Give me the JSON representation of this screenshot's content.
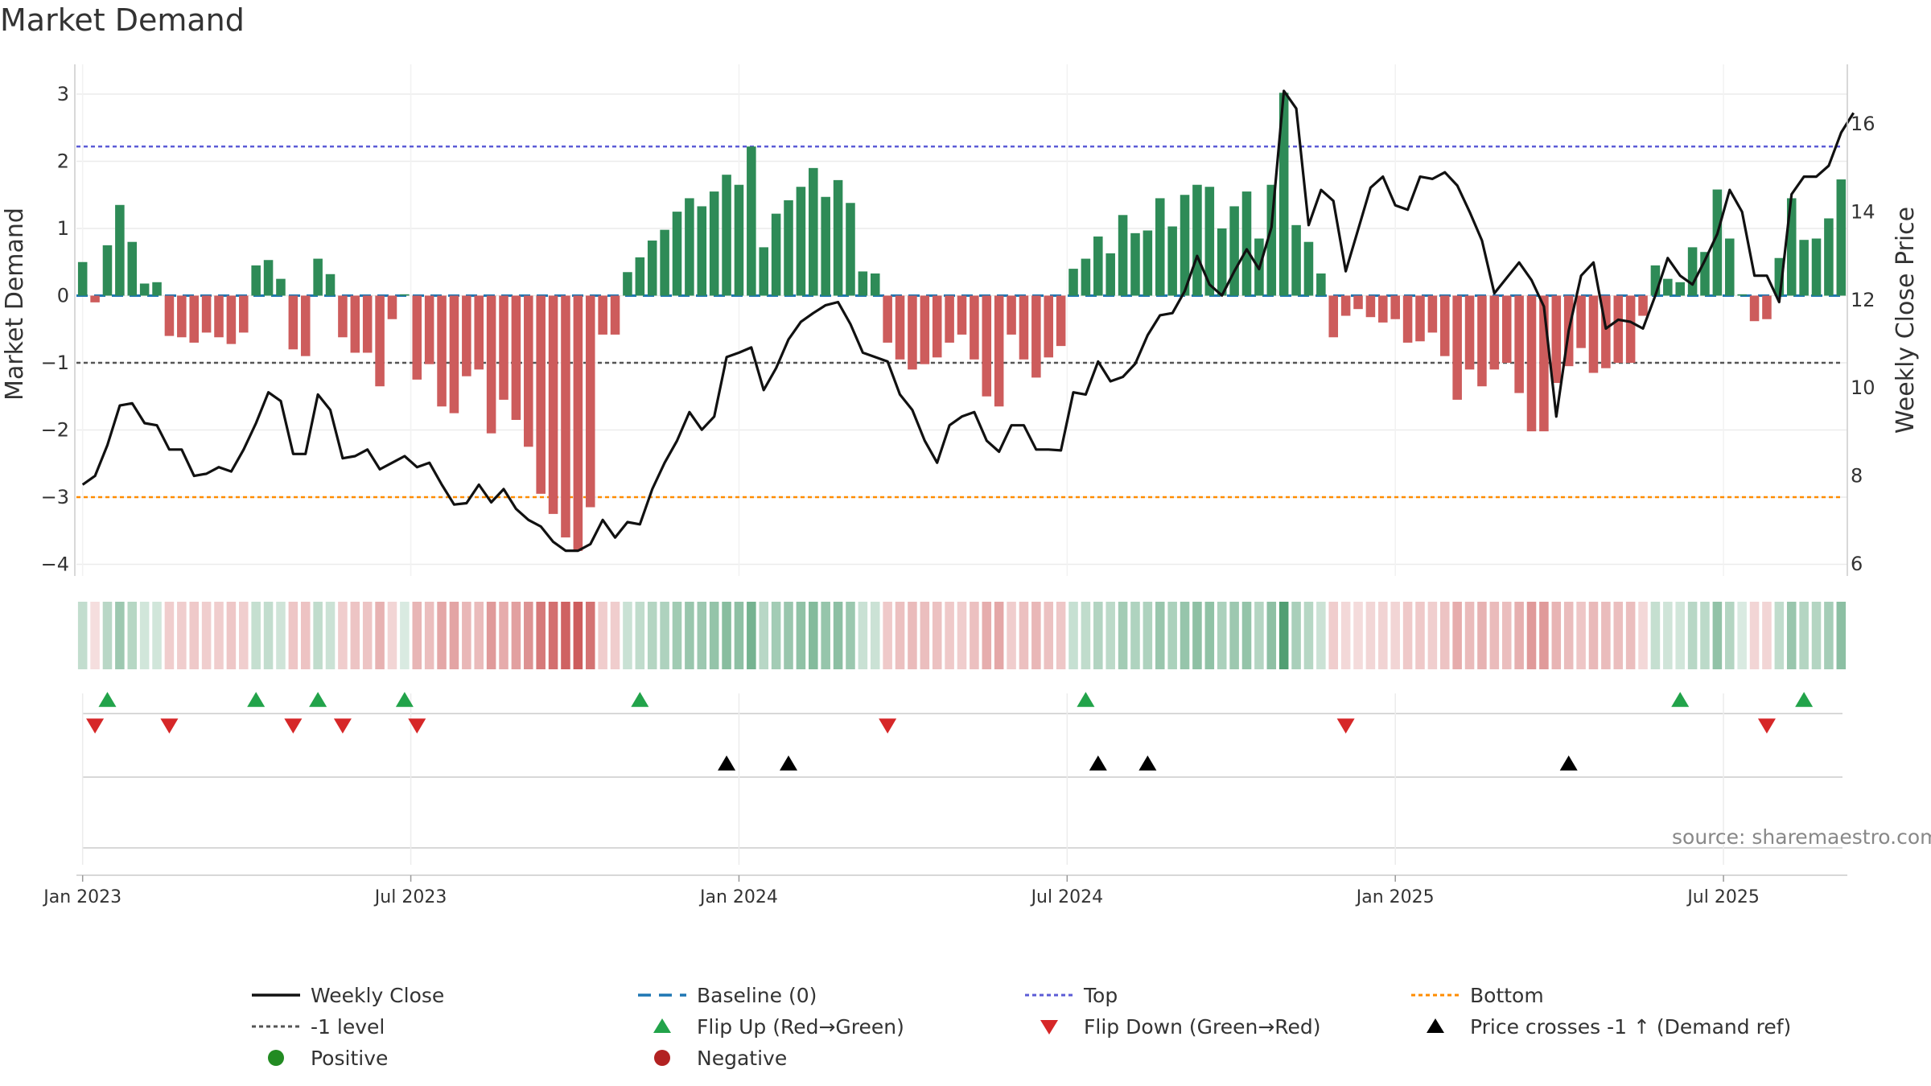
{
  "chart_data": {
    "type": "bar",
    "title": "Market Demand",
    "ylabel": "Market Demand",
    "y2label": "Weekly Close Price",
    "ylim": [
      -4.3,
      3.5
    ],
    "y2lim": [
      5.75,
      17.1
    ],
    "yticks": [
      "−4",
      "−3",
      "−2",
      "−1",
      "0",
      "1",
      "2",
      "3"
    ],
    "ytick_values": [
      -4,
      -3,
      -2,
      -1,
      0,
      1,
      2,
      3
    ],
    "y2ticks": [
      "6",
      "8",
      "10",
      "12",
      "14",
      "16"
    ],
    "y2tick_values": [
      6,
      8,
      10,
      12,
      14,
      16
    ],
    "x_dates": [
      "Jan 2023",
      "Jul 2023",
      "Jan 2024",
      "Jul 2024",
      "Jan 2025",
      "Jul 2025"
    ],
    "x_date_index": [
      1,
      27.5,
      54,
      80.5,
      107,
      133.5
    ],
    "reference_lines": {
      "top": 2.22,
      "bottom": -3.0,
      "minus_one": -1.0,
      "baseline": 0
    },
    "demand": [
      0.5,
      -0.1,
      0.75,
      1.35,
      0.8,
      0.18,
      0.2,
      -0.6,
      -0.62,
      -0.7,
      -0.55,
      -0.62,
      -0.72,
      -0.55,
      0.45,
      0.53,
      0.25,
      -0.8,
      -0.9,
      0.55,
      0.32,
      -0.62,
      -0.85,
      -0.85,
      -1.35,
      -0.35,
      0.02,
      -1.25,
      -1.02,
      -1.65,
      -1.75,
      -1.2,
      -1.1,
      -2.05,
      -1.55,
      -1.85,
      -2.25,
      -2.95,
      -3.25,
      -3.6,
      -3.8,
      -3.15,
      -0.58,
      -0.58,
      0.35,
      0.57,
      0.82,
      0.98,
      1.25,
      1.45,
      1.33,
      1.55,
      1.8,
      1.65,
      2.22,
      0.72,
      1.22,
      1.42,
      1.62,
      1.9,
      1.47,
      1.72,
      1.38,
      0.36,
      0.33,
      -0.7,
      -0.95,
      -1.1,
      -1.02,
      -0.92,
      -0.7,
      -0.58,
      -0.95,
      -1.5,
      -1.65,
      -0.58,
      -0.95,
      -1.22,
      -0.92,
      -0.75,
      0.4,
      0.55,
      0.88,
      0.63,
      1.2,
      0.93,
      0.97,
      1.45,
      1.03,
      1.5,
      1.65,
      1.62,
      1.0,
      1.33,
      1.55,
      0.85,
      1.65,
      3.02,
      1.05,
      0.8,
      0.33,
      -0.62,
      -0.3,
      -0.2,
      -0.32,
      -0.4,
      -0.35,
      -0.7,
      -0.68,
      -0.55,
      -0.9,
      -1.55,
      -1.1,
      -1.35,
      -1.1,
      -1.0,
      -1.45,
      -2.02,
      -2.02,
      -1.3,
      -1.05,
      -0.78,
      -1.15,
      -1.08,
      -1.0,
      -1.0,
      -0.3,
      0.45,
      0.25,
      0.2,
      0.72,
      0.65,
      1.58,
      0.85,
      0.02,
      -0.38,
      -0.35,
      0.56,
      1.45,
      0.83,
      0.85,
      1.15,
      1.73
    ],
    "weekly_close": [
      7.8,
      8.0,
      8.7,
      9.6,
      9.65,
      9.2,
      9.15,
      8.6,
      8.6,
      8.0,
      8.05,
      8.2,
      8.1,
      8.6,
      9.2,
      9.9,
      9.7,
      8.5,
      8.5,
      9.85,
      9.5,
      8.4,
      8.45,
      8.6,
      8.15,
      8.3,
      8.45,
      8.2,
      8.3,
      7.8,
      7.35,
      7.38,
      7.8,
      7.4,
      7.7,
      7.25,
      7.0,
      6.85,
      6.5,
      6.3,
      6.3,
      6.45,
      7.0,
      6.6,
      6.95,
      6.9,
      7.7,
      8.3,
      8.8,
      9.45,
      9.05,
      9.35,
      10.7,
      10.8,
      10.92,
      9.95,
      10.45,
      11.1,
      11.5,
      11.7,
      11.88,
      11.95,
      11.45,
      10.8,
      10.7,
      10.6,
      9.85,
      9.5,
      8.8,
      8.3,
      9.15,
      9.35,
      9.45,
      8.8,
      8.55,
      9.15,
      9.15,
      8.6,
      8.6,
      8.58,
      9.9,
      9.85,
      10.6,
      10.15,
      10.25,
      10.55,
      11.2,
      11.65,
      11.7,
      12.2,
      13.0,
      12.35,
      12.1,
      12.65,
      13.15,
      12.7,
      13.65,
      16.75,
      16.35,
      13.7,
      14.5,
      14.25,
      12.65,
      13.6,
      14.55,
      14.8,
      14.15,
      14.05,
      14.8,
      14.75,
      14.9,
      14.6,
      14.0,
      13.35,
      12.15,
      12.5,
      12.85,
      12.45,
      11.85,
      9.35,
      11.3,
      12.55,
      12.85,
      11.35,
      11.55,
      11.5,
      11.35,
      12.1,
      12.95,
      12.55,
      12.35,
      12.9,
      13.5,
      14.5,
      14.0,
      12.55,
      12.55,
      11.95,
      14.4,
      14.8,
      14.8,
      15.05,
      15.8,
      16.25
    ],
    "flip_up_index": [
      2,
      14,
      19,
      26,
      45,
      81,
      129,
      139
    ],
    "flip_down_index": [
      1,
      7,
      17,
      21,
      27,
      65,
      102,
      136
    ],
    "price_cross_index": [
      52,
      57,
      82,
      86,
      120
    ],
    "colors": {
      "positive_bar": "#2e8b57",
      "negative_bar": "#cd5c5c",
      "weekly_close": "#111111",
      "baseline": "#1f77b4",
      "top": "#5b5bd6",
      "bottom": "#ff8c00",
      "minus_one": "#555555",
      "flip_up": "#22a34a",
      "flip_down": "#d62728",
      "price_cross": "#000000",
      "positive_dot": "#228b22",
      "negative_dot": "#b22222"
    },
    "legend": [
      {
        "label": "Weekly Close",
        "marker": "line"
      },
      {
        "label": "Baseline (0)",
        "marker": "dash"
      },
      {
        "label": "Top",
        "marker": "dot-line-top"
      },
      {
        "label": "Bottom",
        "marker": "dot-line-bottom"
      },
      {
        "label": "-1 level",
        "marker": "dot-line-gray"
      },
      {
        "label": "Flip Up (Red→Green)",
        "marker": "triangle-up-green"
      },
      {
        "label": "Flip Down (Green→Red)",
        "marker": "triangle-down-red"
      },
      {
        "label": "Price crosses -1 ↑ (Demand ref)",
        "marker": "triangle-up-black"
      },
      {
        "label": "Positive",
        "marker": "dot-green"
      },
      {
        "label": "Negative",
        "marker": "dot-red"
      }
    ],
    "source": "source: sharemaestro.com"
  }
}
